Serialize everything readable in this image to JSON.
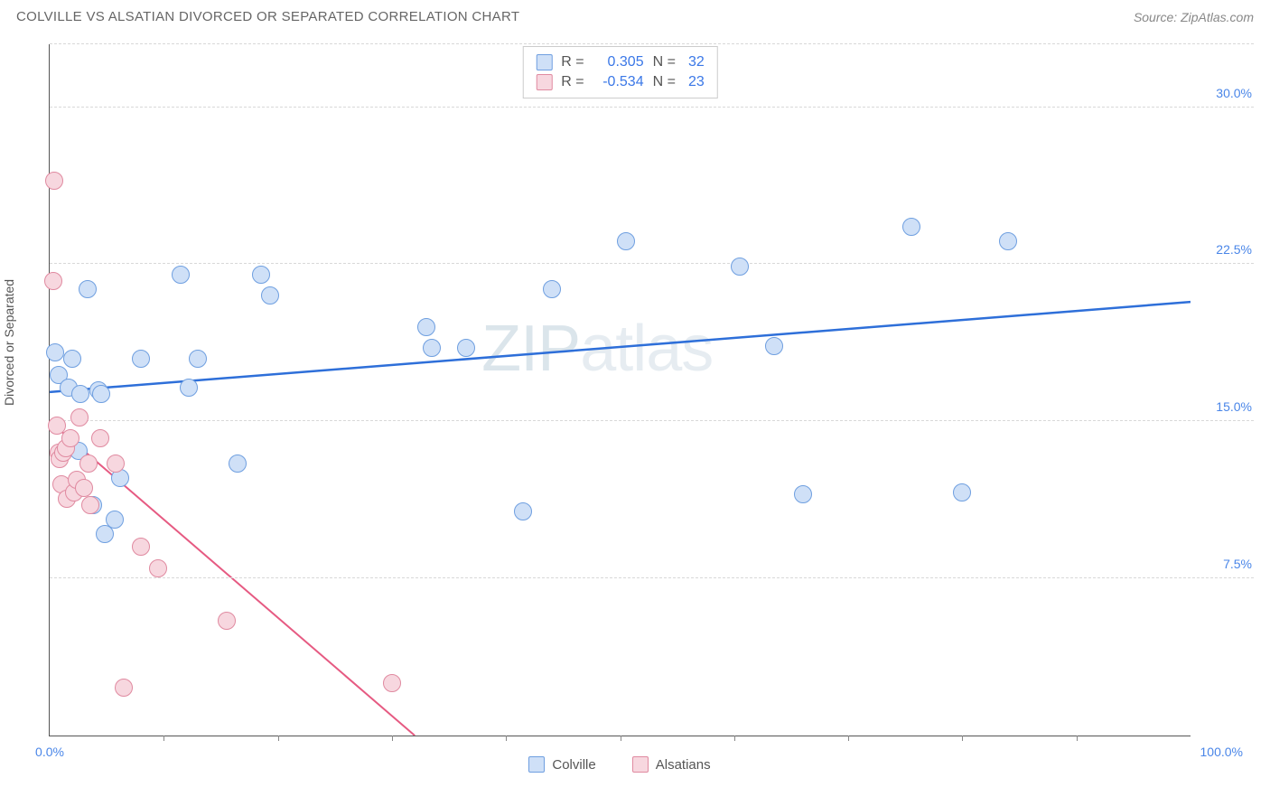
{
  "header": {
    "title": "COLVILLE VS ALSATIAN DIVORCED OR SEPARATED CORRELATION CHART",
    "source": "Source: ZipAtlas.com"
  },
  "chart": {
    "type": "scatter",
    "ylabel": "Divorced or Separated",
    "xlim": [
      0,
      100
    ],
    "ylim": [
      0,
      33
    ],
    "x_unit": "%",
    "y_unit": "%",
    "yticks": [
      7.5,
      15.0,
      22.5,
      30.0
    ],
    "ytick_labels": [
      "7.5%",
      "15.0%",
      "22.5%",
      "30.0%"
    ],
    "xtick_positions": [
      10,
      20,
      30,
      40,
      50,
      60,
      70,
      80,
      90
    ],
    "xtick_label_left": "0.0%",
    "xtick_label_right": "100.0%",
    "grid_color": "#d8d8d8",
    "axis_color": "#555555",
    "background_color": "#ffffff",
    "tick_label_color": "#4a86e8",
    "watermark": "ZIPatlas",
    "series": [
      {
        "name": "Colville",
        "marker_fill": "#cfe0f7",
        "marker_stroke": "#6f9fe0",
        "marker_radius": 10,
        "trend_color": "#2e6fd9",
        "trend_width": 2.5,
        "trend": {
          "x1": 0,
          "y1": 16.4,
          "x2": 100,
          "y2": 20.7
        },
        "R": "0.305",
        "N": "32",
        "points": [
          [
            0.5,
            18.3
          ],
          [
            0.8,
            17.2
          ],
          [
            1.7,
            16.6
          ],
          [
            2.0,
            18.0
          ],
          [
            2.5,
            13.6
          ],
          [
            2.7,
            16.3
          ],
          [
            3.3,
            21.3
          ],
          [
            3.8,
            11.0
          ],
          [
            4.3,
            16.5
          ],
          [
            4.5,
            16.3
          ],
          [
            4.8,
            9.6
          ],
          [
            5.7,
            10.3
          ],
          [
            6.2,
            12.3
          ],
          [
            8.0,
            18.0
          ],
          [
            11.5,
            22.0
          ],
          [
            12.2,
            16.6
          ],
          [
            13.0,
            18.0
          ],
          [
            16.5,
            13.0
          ],
          [
            18.5,
            22.0
          ],
          [
            19.3,
            21.0
          ],
          [
            33.0,
            19.5
          ],
          [
            33.5,
            18.5
          ],
          [
            36.5,
            18.5
          ],
          [
            41.5,
            10.7
          ],
          [
            44.0,
            21.3
          ],
          [
            50.5,
            23.6
          ],
          [
            60.5,
            22.4
          ],
          [
            63.5,
            18.6
          ],
          [
            66.0,
            11.5
          ],
          [
            75.5,
            24.3
          ],
          [
            80.0,
            11.6
          ],
          [
            84.0,
            23.6
          ]
        ]
      },
      {
        "name": "Alsatians",
        "marker_fill": "#f7d7df",
        "marker_stroke": "#e08aa0",
        "marker_radius": 10,
        "trend_color": "#e65a82",
        "trend_width": 2,
        "trend": {
          "x1": 0,
          "y1": 15.0,
          "x2": 32,
          "y2": 0
        },
        "R": "-0.534",
        "N": "23",
        "points": [
          [
            0.3,
            21.7
          ],
          [
            0.4,
            26.5
          ],
          [
            0.6,
            14.8
          ],
          [
            0.8,
            13.5
          ],
          [
            0.9,
            13.2
          ],
          [
            1.0,
            12.0
          ],
          [
            1.2,
            13.5
          ],
          [
            1.4,
            13.7
          ],
          [
            1.5,
            11.3
          ],
          [
            1.8,
            14.2
          ],
          [
            2.1,
            11.6
          ],
          [
            2.4,
            12.2
          ],
          [
            2.6,
            15.2
          ],
          [
            3.0,
            11.8
          ],
          [
            3.4,
            13.0
          ],
          [
            3.6,
            11.0
          ],
          [
            4.4,
            14.2
          ],
          [
            5.8,
            13.0
          ],
          [
            6.5,
            2.3
          ],
          [
            8.0,
            9.0
          ],
          [
            9.5,
            8.0
          ],
          [
            15.5,
            5.5
          ],
          [
            30.0,
            2.5
          ]
        ]
      }
    ],
    "stats_box": {
      "rows": [
        {
          "swatch_fill": "#cfe0f7",
          "swatch_stroke": "#6f9fe0",
          "R_label": "R =",
          "R": "0.305",
          "N_label": "N =",
          "N": "32"
        },
        {
          "swatch_fill": "#f7d7df",
          "swatch_stroke": "#e08aa0",
          "R_label": "R =",
          "R": "-0.534",
          "N_label": "N =",
          "N": "23"
        }
      ]
    },
    "x_legend": [
      {
        "swatch_fill": "#cfe0f7",
        "swatch_stroke": "#6f9fe0",
        "label": "Colville"
      },
      {
        "swatch_fill": "#f7d7df",
        "swatch_stroke": "#e08aa0",
        "label": "Alsatians"
      }
    ]
  }
}
